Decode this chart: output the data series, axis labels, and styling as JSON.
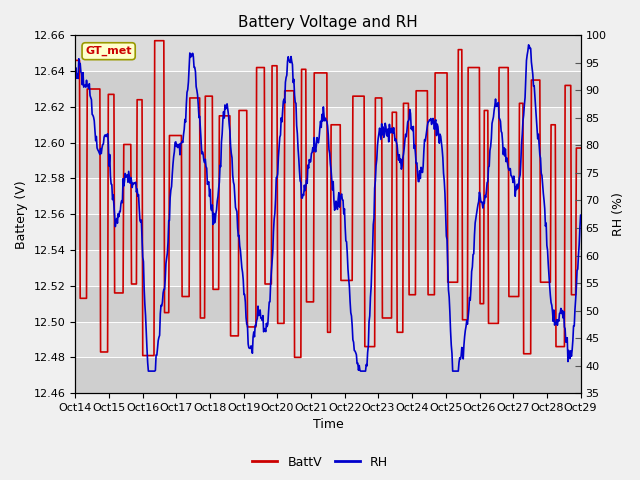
{
  "title": "Battery Voltage and RH",
  "xlabel": "Time",
  "ylabel_left": "Battery (V)",
  "ylabel_right": "RH (%)",
  "station_label": "GT_met",
  "x_tick_labels": [
    "Oct 14",
    "Oct 15",
    "Oct 16",
    "Oct 17",
    "Oct 18",
    "Oct 19",
    "Oct 20",
    "Oct 21",
    "Oct 22",
    "Oct 23",
    "Oct 24",
    "Oct 25",
    "Oct 26",
    "Oct 27",
    "Oct 28",
    "Oct 29"
  ],
  "ylim_left": [
    12.46,
    12.66
  ],
  "ylim_right": [
    35,
    100
  ],
  "yticks_left": [
    12.46,
    12.48,
    12.5,
    12.52,
    12.54,
    12.56,
    12.58,
    12.6,
    12.62,
    12.64,
    12.66
  ],
  "yticks_right": [
    35,
    40,
    45,
    50,
    55,
    60,
    65,
    70,
    75,
    80,
    85,
    90,
    95,
    100
  ],
  "color_battv": "#cc0000",
  "color_rh": "#0000cc",
  "legend_labels": [
    "BattV",
    "RH"
  ],
  "fig_facecolor": "#f0f0f0",
  "plot_bg_color": "#d8d8d8",
  "grid_color": "#ffffff",
  "title_fontsize": 11,
  "label_fontsize": 9,
  "tick_fontsize": 8,
  "legend_fontsize": 9,
  "linewidth": 1.2,
  "n_days": 15,
  "n_points_per_day": 48
}
